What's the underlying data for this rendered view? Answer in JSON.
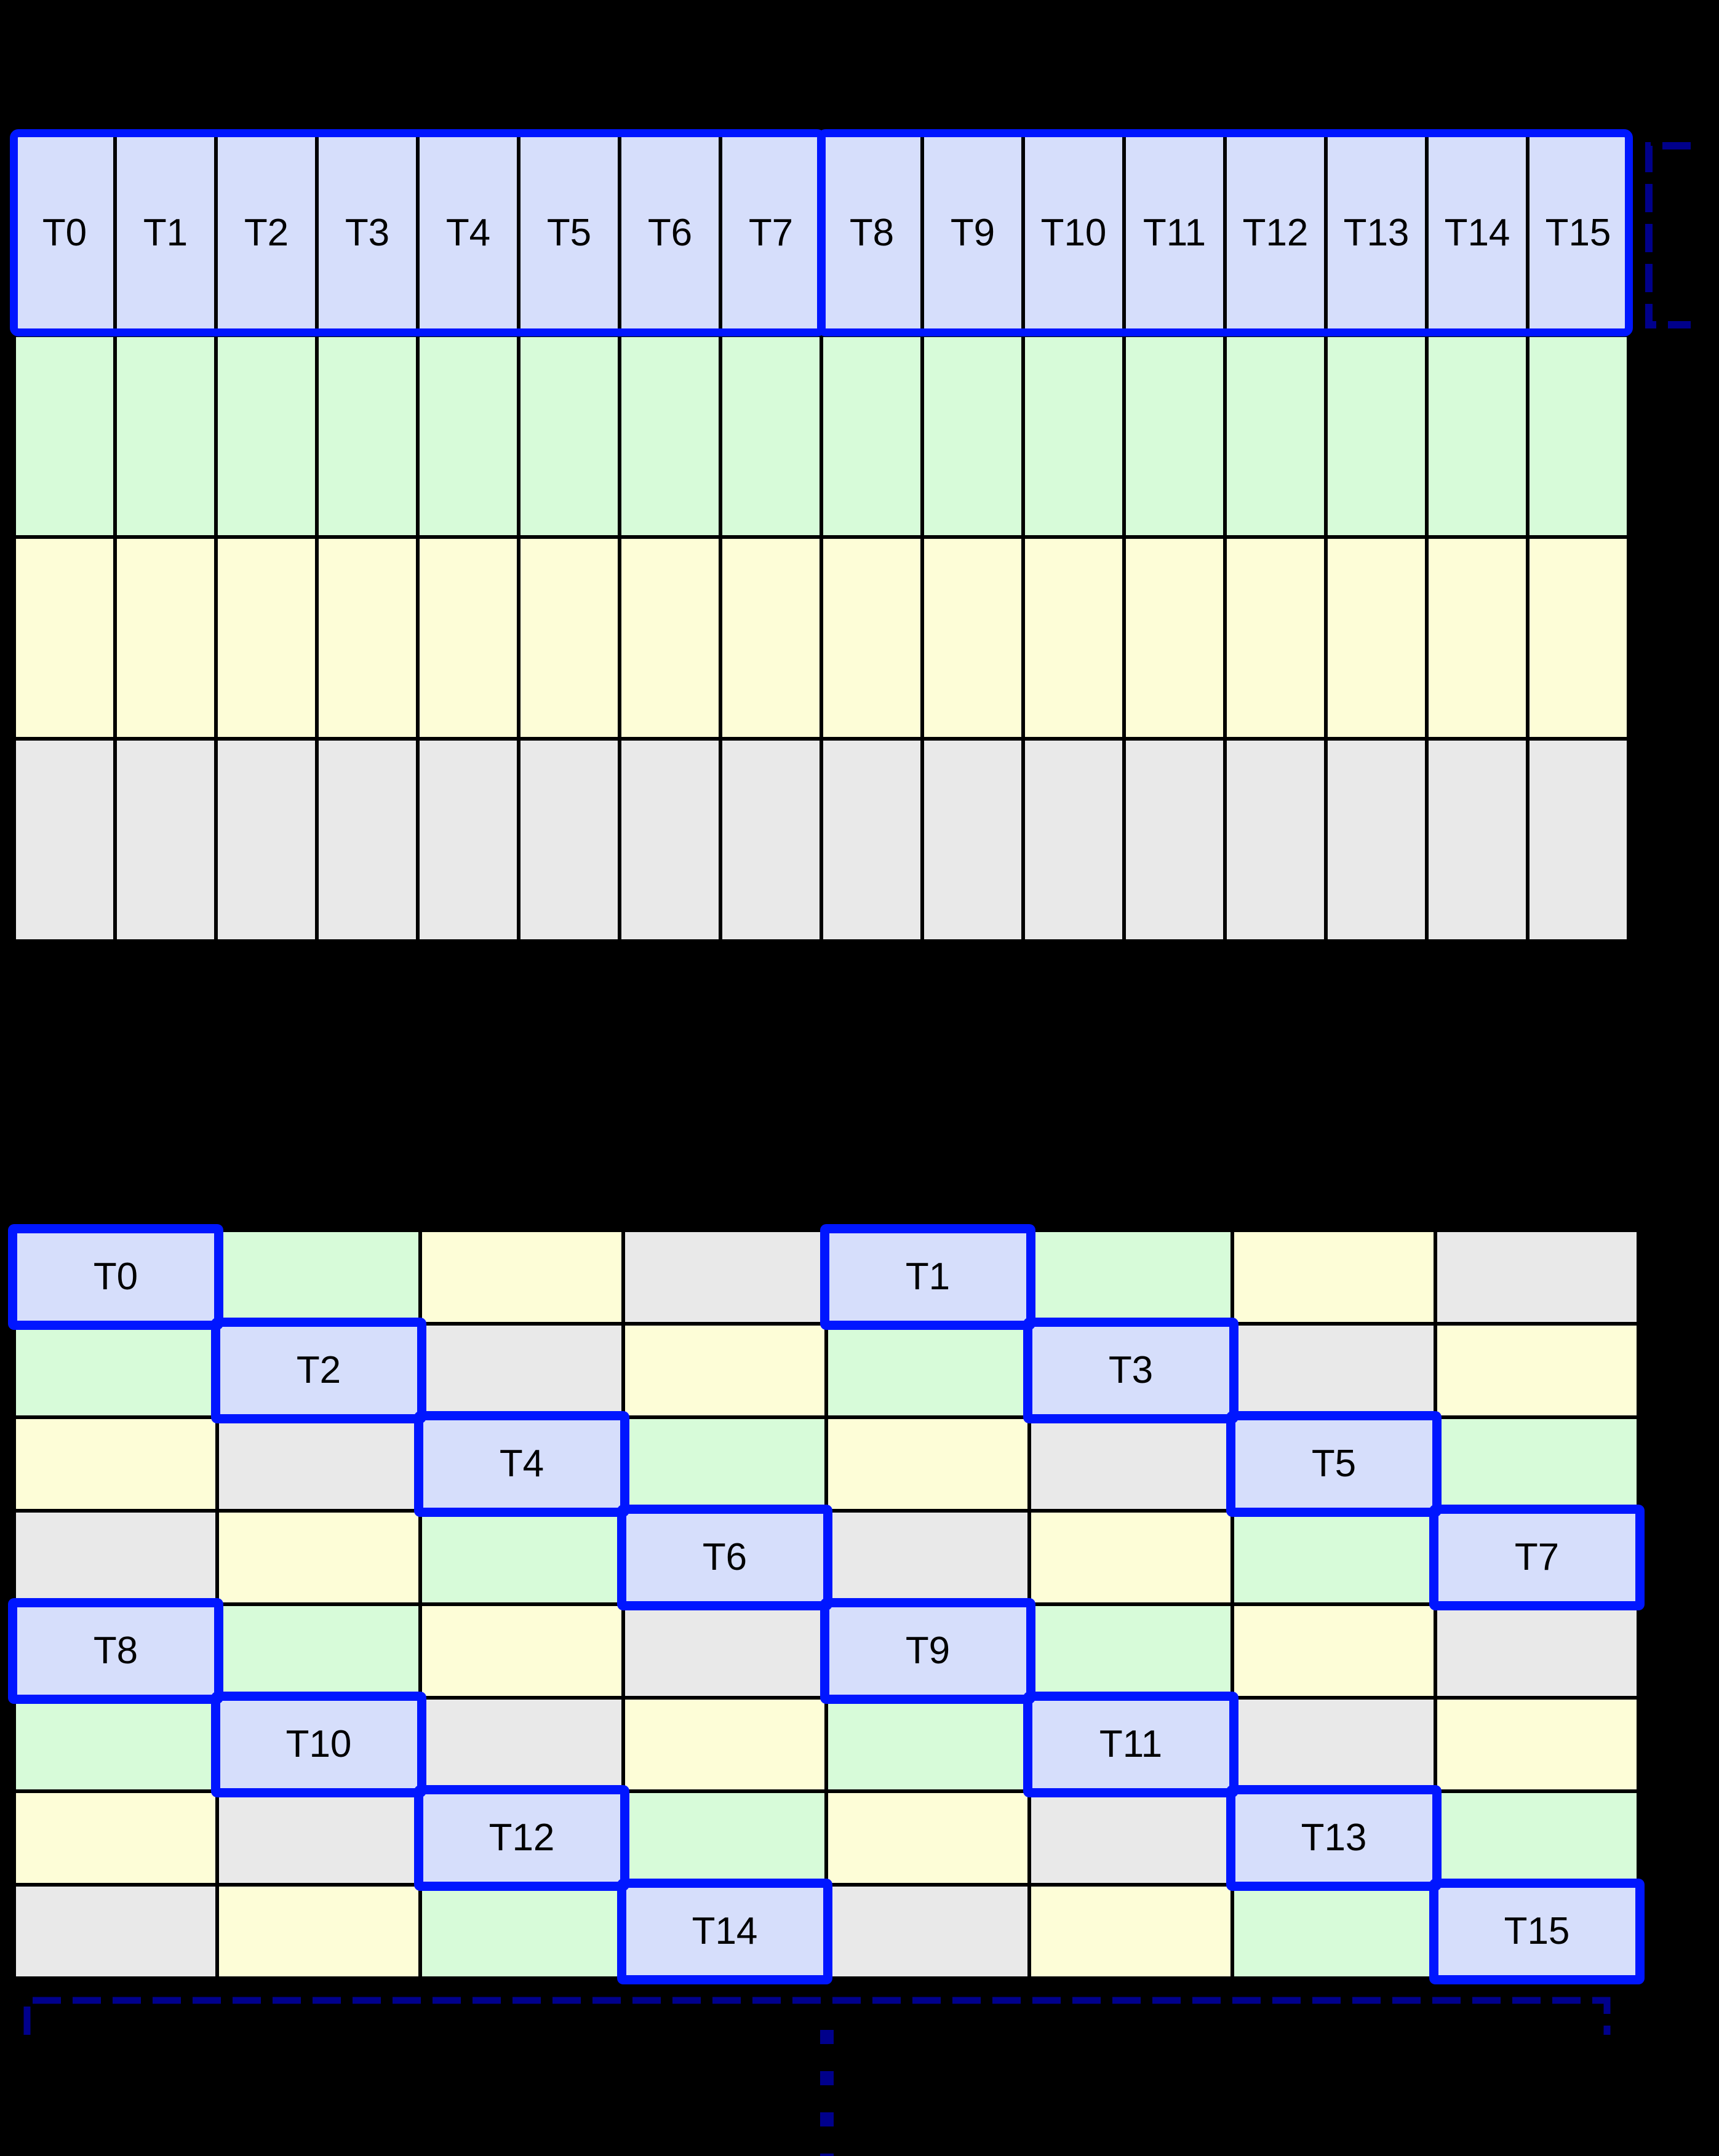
{
  "cell_colors": {
    "blue": "#d6defb",
    "green": "#d7fbd9",
    "yellow": "#fdfdd7",
    "gray": "#e9e9e9"
  },
  "accent_colors": {
    "thread_outline": "#0016ff",
    "bracket": "#00008b",
    "gridline": "#000000",
    "background": "#000000",
    "label": "#000000"
  },
  "top_grid": {
    "columns": 16,
    "rows": [
      {
        "color": "blue",
        "labels": [
          "T0",
          "T1",
          "T2",
          "T3",
          "T4",
          "T5",
          "T6",
          "T7",
          "T8",
          "T9",
          "T10",
          "T11",
          "T12",
          "T13",
          "T14",
          "T15"
        ]
      },
      {
        "color": "green"
      },
      {
        "color": "yellow"
      },
      {
        "color": "gray"
      }
    ],
    "thread_groups": [
      {
        "first": "T0",
        "last": "T7"
      },
      {
        "first": "T8",
        "last": "T15"
      }
    ]
  },
  "bottom_grid": {
    "columns": 8,
    "rows": [
      {
        "cells": [
          {
            "color": "blue",
            "label": "T0",
            "highlight": true
          },
          {
            "color": "green"
          },
          {
            "color": "yellow"
          },
          {
            "color": "gray"
          },
          {
            "color": "blue",
            "label": "T1",
            "highlight": true
          },
          {
            "color": "green"
          },
          {
            "color": "yellow"
          },
          {
            "color": "gray"
          }
        ]
      },
      {
        "cells": [
          {
            "color": "green"
          },
          {
            "color": "blue",
            "label": "T2",
            "highlight": true
          },
          {
            "color": "gray"
          },
          {
            "color": "yellow"
          },
          {
            "color": "green"
          },
          {
            "color": "blue",
            "label": "T3",
            "highlight": true
          },
          {
            "color": "gray"
          },
          {
            "color": "yellow"
          }
        ]
      },
      {
        "cells": [
          {
            "color": "yellow"
          },
          {
            "color": "gray"
          },
          {
            "color": "blue",
            "label": "T4",
            "highlight": true
          },
          {
            "color": "green"
          },
          {
            "color": "yellow"
          },
          {
            "color": "gray"
          },
          {
            "color": "blue",
            "label": "T5",
            "highlight": true
          },
          {
            "color": "green"
          }
        ]
      },
      {
        "cells": [
          {
            "color": "gray"
          },
          {
            "color": "yellow"
          },
          {
            "color": "green"
          },
          {
            "color": "blue",
            "label": "T6",
            "highlight": true
          },
          {
            "color": "gray"
          },
          {
            "color": "yellow"
          },
          {
            "color": "green"
          },
          {
            "color": "blue",
            "label": "T7",
            "highlight": true
          }
        ]
      },
      {
        "cells": [
          {
            "color": "blue",
            "label": "T8",
            "highlight": true
          },
          {
            "color": "green"
          },
          {
            "color": "yellow"
          },
          {
            "color": "gray"
          },
          {
            "color": "blue",
            "label": "T9",
            "highlight": true
          },
          {
            "color": "green"
          },
          {
            "color": "yellow"
          },
          {
            "color": "gray"
          }
        ]
      },
      {
        "cells": [
          {
            "color": "green"
          },
          {
            "color": "blue",
            "label": "T10",
            "highlight": true
          },
          {
            "color": "gray"
          },
          {
            "color": "yellow"
          },
          {
            "color": "green"
          },
          {
            "color": "blue",
            "label": "T11",
            "highlight": true
          },
          {
            "color": "gray"
          },
          {
            "color": "yellow"
          }
        ]
      },
      {
        "cells": [
          {
            "color": "yellow"
          },
          {
            "color": "gray"
          },
          {
            "color": "blue",
            "label": "T12",
            "highlight": true
          },
          {
            "color": "green"
          },
          {
            "color": "yellow"
          },
          {
            "color": "gray"
          },
          {
            "color": "blue",
            "label": "T13",
            "highlight": true
          },
          {
            "color": "green"
          }
        ]
      },
      {
        "cells": [
          {
            "color": "gray"
          },
          {
            "color": "yellow"
          },
          {
            "color": "green"
          },
          {
            "color": "blue",
            "label": "T14",
            "highlight": true
          },
          {
            "color": "gray"
          },
          {
            "color": "yellow"
          },
          {
            "color": "green"
          },
          {
            "color": "blue",
            "label": "T15",
            "highlight": true
          }
        ]
      }
    ]
  },
  "annotations": {
    "row_span_bracket_icon": "dashed-square-bracket",
    "bottom_span_bracket_icon": "dashed-down-ended-overline",
    "continuation_icon": "vertical-ellipsis"
  }
}
